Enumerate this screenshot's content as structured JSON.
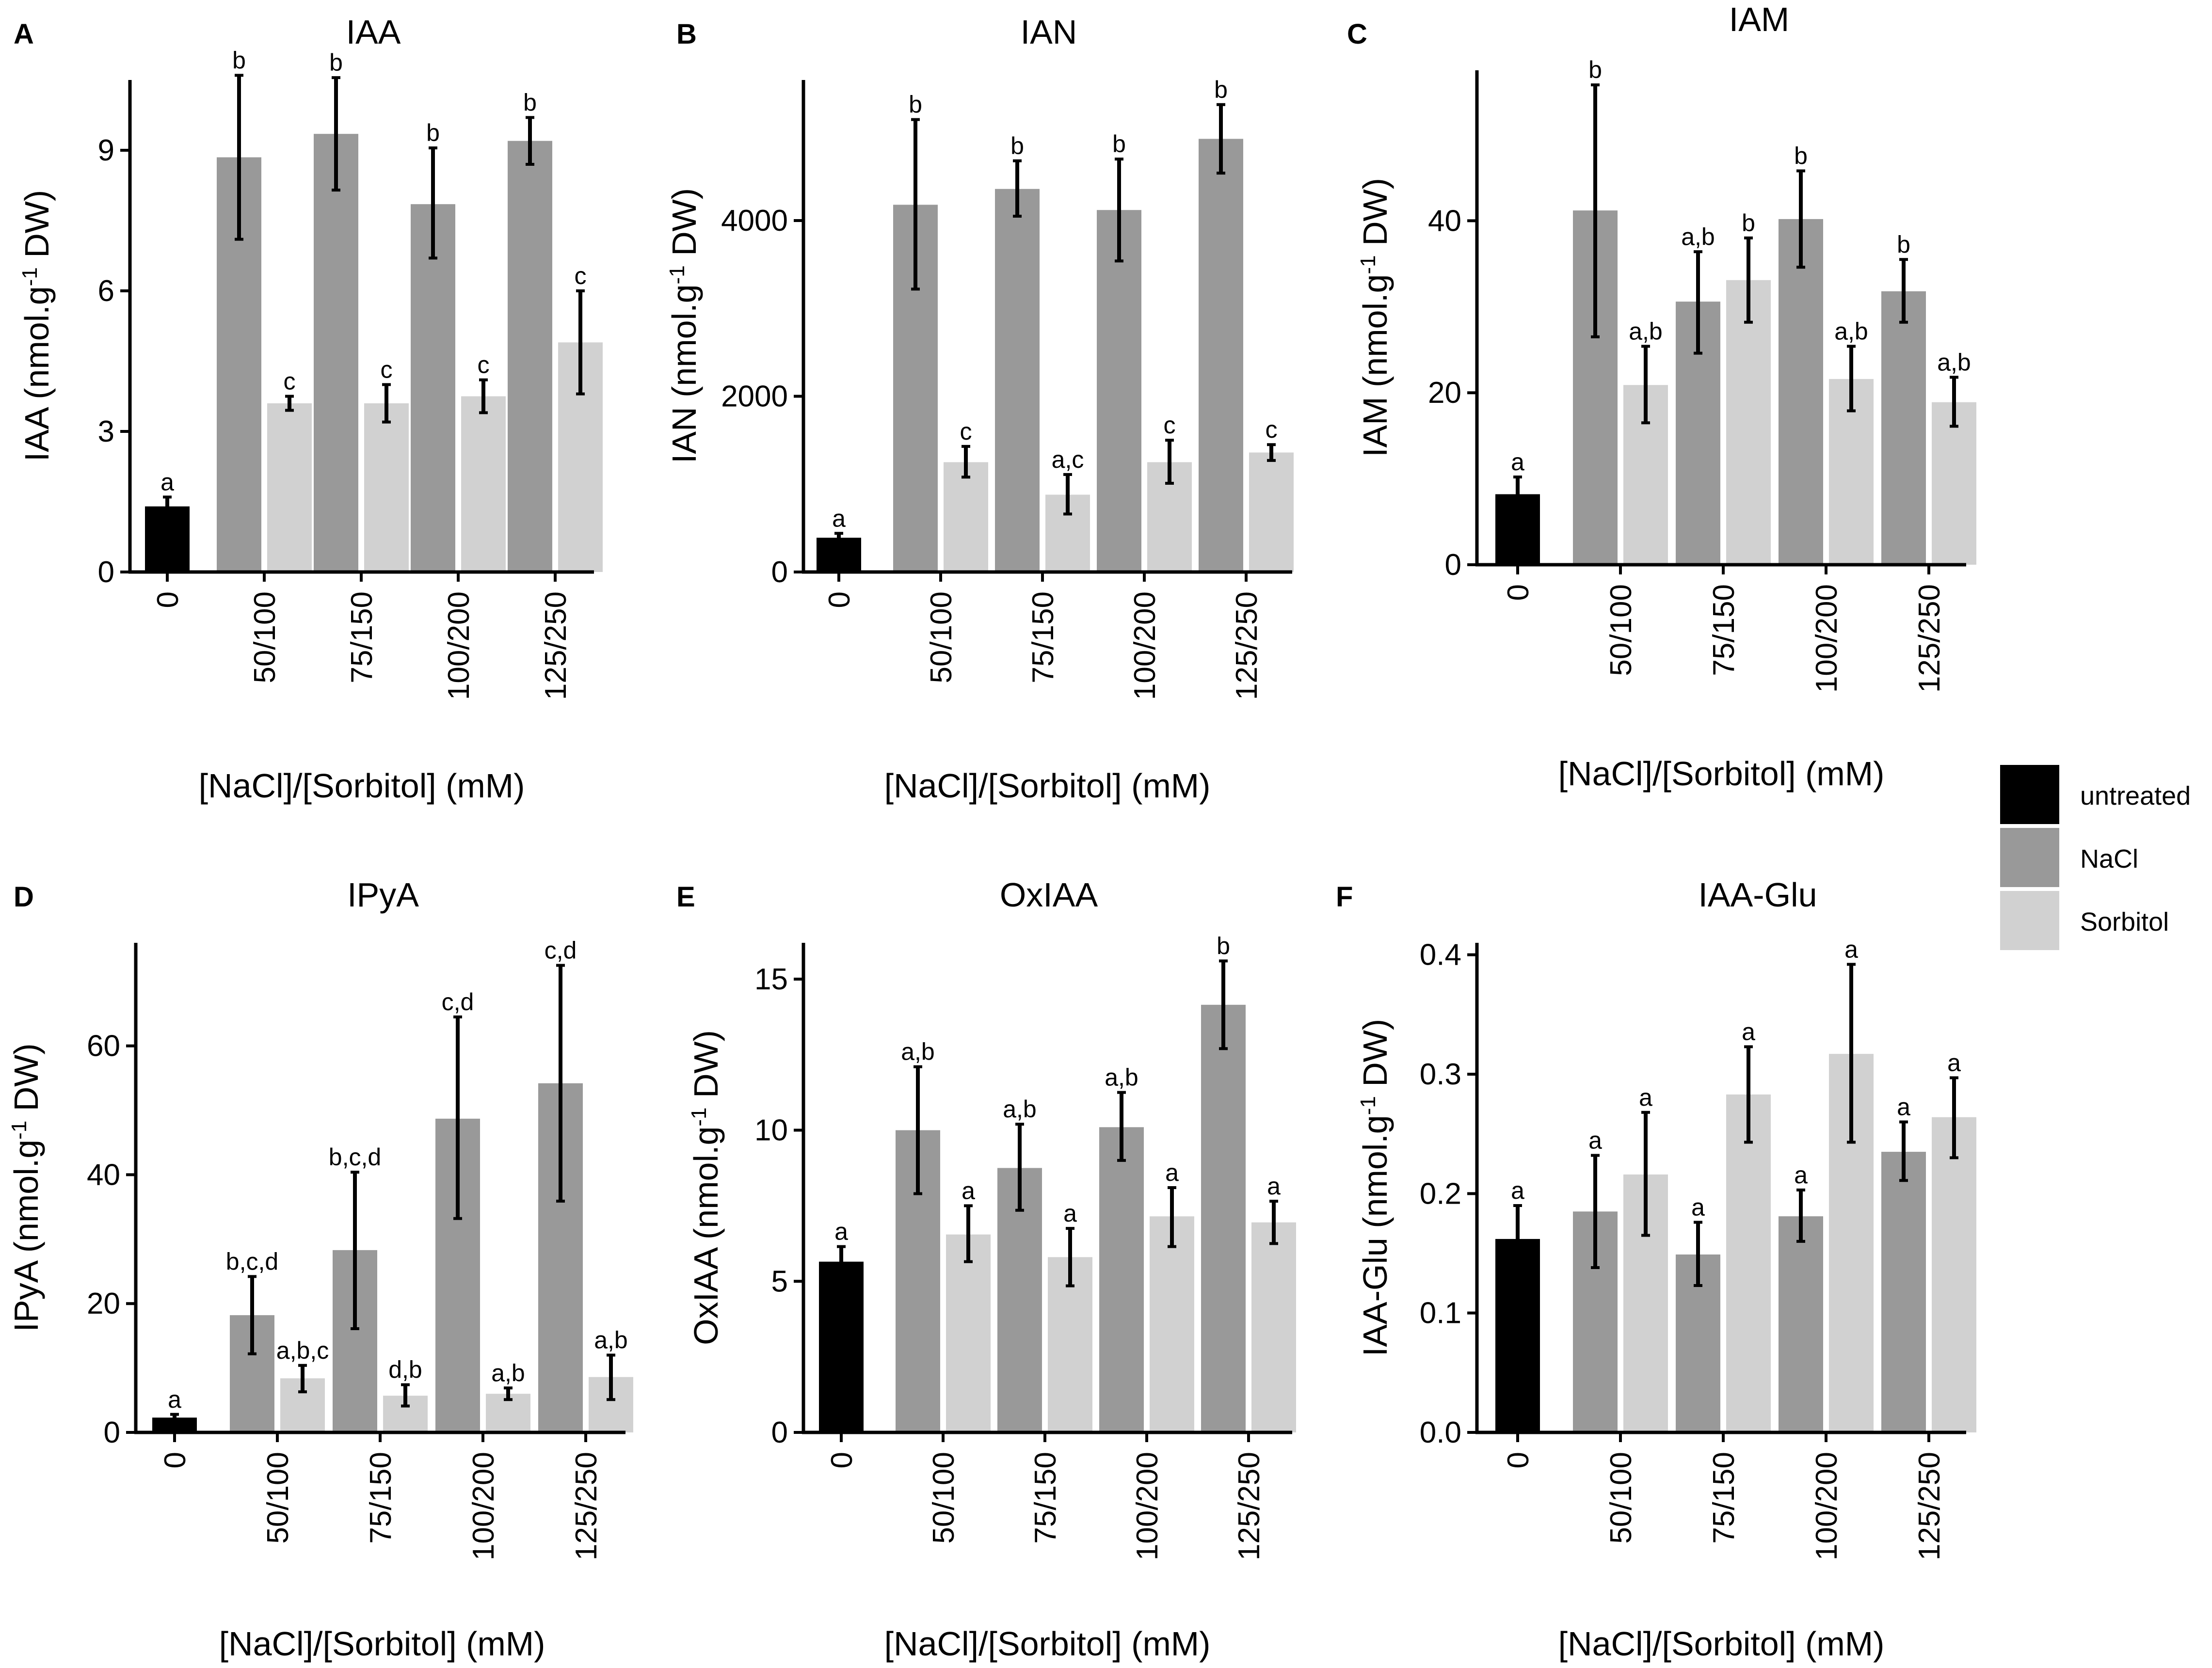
{
  "legend": {
    "entries": [
      {
        "key": "untreated",
        "label": "untreated",
        "color": "#000000"
      },
      {
        "key": "nacl",
        "label": "NaCl",
        "color": "#999999"
      },
      {
        "key": "sorbitol",
        "label": "Sorbitol",
        "color": "#d1d1d1"
      }
    ]
  },
  "chart_data": [
    {
      "panel": "A",
      "type": "bar",
      "title": "IAA",
      "ylabel": "IAA (nmol.g-1 DW)",
      "ylabel_base": "IAA (nmol.g",
      "ylabel_sup": "-1",
      "ylabel_tail": " DW)",
      "xlabel": "[NaCl]/[Sorbitol] (mM)",
      "categories": [
        "0",
        "50/100",
        "75/150",
        "100/200",
        "125/250"
      ],
      "ylim": [
        0,
        10.5
      ],
      "yticks": [
        0,
        3,
        6,
        9
      ],
      "ytick_labels": [
        "0",
        "3",
        "6",
        "9"
      ],
      "bars": [
        {
          "series": "untreated",
          "category": "0",
          "value": 1.4,
          "err_low": 1.2,
          "err_high": 1.6,
          "sig": "a"
        },
        {
          "series": "nacl",
          "category": "50/100",
          "value": 8.85,
          "err_low": 7.1,
          "err_high": 10.6,
          "sig": "b"
        },
        {
          "series": "sorbitol",
          "category": "50/100",
          "value": 3.6,
          "err_low": 3.45,
          "err_high": 3.75,
          "sig": "c"
        },
        {
          "series": "nacl",
          "category": "75/150",
          "value": 9.35,
          "err_low": 8.15,
          "err_high": 10.55,
          "sig": "b"
        },
        {
          "series": "sorbitol",
          "category": "75/150",
          "value": 3.6,
          "err_low": 3.2,
          "err_high": 4.0,
          "sig": "c"
        },
        {
          "series": "nacl",
          "category": "100/200",
          "value": 7.85,
          "err_low": 6.7,
          "err_high": 9.05,
          "sig": "b"
        },
        {
          "series": "sorbitol",
          "category": "100/200",
          "value": 3.75,
          "err_low": 3.4,
          "err_high": 4.1,
          "sig": "c"
        },
        {
          "series": "nacl",
          "category": "125/250",
          "value": 9.2,
          "err_low": 8.7,
          "err_high": 9.7,
          "sig": "b"
        },
        {
          "series": "sorbitol",
          "category": "125/250",
          "value": 4.9,
          "err_low": 3.8,
          "err_high": 6.0,
          "sig": "c"
        }
      ]
    },
    {
      "panel": "B",
      "type": "bar",
      "title": "IAN",
      "ylabel": "IAN (nmol.g-1 DW)",
      "ylabel_base": "IAN (nmol.g",
      "ylabel_sup": "-1",
      "ylabel_tail": " DW)",
      "xlabel": "[NaCl]/[Sorbitol] (mM)",
      "categories": [
        "0",
        "50/100",
        "75/150",
        "100/200",
        "125/250"
      ],
      "ylim": [
        0,
        5600
      ],
      "yticks": [
        0,
        2000,
        4000
      ],
      "ytick_labels": [
        "0",
        "2000",
        "4000"
      ],
      "bars": [
        {
          "series": "untreated",
          "category": "0",
          "value": 390,
          "err_low": 340,
          "err_high": 440,
          "sig": "a"
        },
        {
          "series": "nacl",
          "category": "50/100",
          "value": 4180,
          "err_low": 3220,
          "err_high": 5150,
          "sig": "b"
        },
        {
          "series": "sorbitol",
          "category": "50/100",
          "value": 1250,
          "err_low": 1080,
          "err_high": 1430,
          "sig": "c"
        },
        {
          "series": "nacl",
          "category": "75/150",
          "value": 4360,
          "err_low": 4050,
          "err_high": 4680,
          "sig": "b"
        },
        {
          "series": "sorbitol",
          "category": "75/150",
          "value": 880,
          "err_low": 660,
          "err_high": 1110,
          "sig": "a,c"
        },
        {
          "series": "nacl",
          "category": "100/200",
          "value": 4120,
          "err_low": 3540,
          "err_high": 4700,
          "sig": "b"
        },
        {
          "series": "sorbitol",
          "category": "100/200",
          "value": 1250,
          "err_low": 1010,
          "err_high": 1500,
          "sig": "c"
        },
        {
          "series": "nacl",
          "category": "125/250",
          "value": 4930,
          "err_low": 4540,
          "err_high": 5320,
          "sig": "b"
        },
        {
          "series": "sorbitol",
          "category": "125/250",
          "value": 1360,
          "err_low": 1270,
          "err_high": 1450,
          "sig": "c"
        }
      ]
    },
    {
      "panel": "C",
      "type": "bar",
      "title": "IAM",
      "ylabel": "IAM (nmol.g-1 DW)",
      "ylabel_base": "IAM (nmol.g",
      "ylabel_sup": "-1",
      "ylabel_tail": " DW)",
      "xlabel": "[NaCl]/[Sorbitol] (mM)",
      "categories": [
        "0",
        "50/100",
        "75/150",
        "100/200",
        "125/250"
      ],
      "ylim": [
        0,
        57.5
      ],
      "yticks": [
        0,
        20,
        40
      ],
      "ytick_labels": [
        "0",
        "20",
        "40"
      ],
      "bars": [
        {
          "series": "untreated",
          "category": "0",
          "value": 8.2,
          "err_low": 6.3,
          "err_high": 10.2,
          "sig": "a"
        },
        {
          "series": "nacl",
          "category": "50/100",
          "value": 41.2,
          "err_low": 26.5,
          "err_high": 55.8,
          "sig": "b"
        },
        {
          "series": "sorbitol",
          "category": "50/100",
          "value": 20.9,
          "err_low": 16.5,
          "err_high": 25.4,
          "sig": "a,b"
        },
        {
          "series": "nacl",
          "category": "75/150",
          "value": 30.6,
          "err_low": 24.6,
          "err_high": 36.4,
          "sig": "a,b"
        },
        {
          "series": "sorbitol",
          "category": "75/150",
          "value": 33.1,
          "err_low": 28.2,
          "err_high": 38.0,
          "sig": "b"
        },
        {
          "series": "nacl",
          "category": "100/200",
          "value": 40.2,
          "err_low": 34.6,
          "err_high": 45.8,
          "sig": "b"
        },
        {
          "series": "sorbitol",
          "category": "100/200",
          "value": 21.6,
          "err_low": 17.9,
          "err_high": 25.4,
          "sig": "a,b"
        },
        {
          "series": "nacl",
          "category": "125/250",
          "value": 31.8,
          "err_low": 28.2,
          "err_high": 35.5,
          "sig": "b"
        },
        {
          "series": "sorbitol",
          "category": "125/250",
          "value": 18.9,
          "err_low": 16.1,
          "err_high": 21.8,
          "sig": "a,b"
        }
      ]
    },
    {
      "panel": "D",
      "type": "bar",
      "title": "IPyA",
      "ylabel": "IPyA (nmol.g-1 DW)",
      "ylabel_base": "IPyA (nmol.g",
      "ylabel_sup": "-1",
      "ylabel_tail": " DW)",
      "xlabel": "[NaCl]/[Sorbitol] (mM)",
      "categories": [
        "0",
        "50/100",
        "75/150",
        "100/200",
        "125/250"
      ],
      "ylim": [
        0,
        76
      ],
      "yticks": [
        0,
        20,
        40,
        60
      ],
      "ytick_labels": [
        "0",
        "20",
        "40",
        "60"
      ],
      "bars": [
        {
          "series": "untreated",
          "category": "0",
          "value": 2.3,
          "err_low": 1.8,
          "err_high": 2.8,
          "sig": "a"
        },
        {
          "series": "nacl",
          "category": "50/100",
          "value": 18.2,
          "err_low": 12.2,
          "err_high": 24.2,
          "sig": "b,c,d"
        },
        {
          "series": "sorbitol",
          "category": "50/100",
          "value": 8.4,
          "err_low": 6.3,
          "err_high": 10.4,
          "sig": "a,b,c"
        },
        {
          "series": "nacl",
          "category": "75/150",
          "value": 28.3,
          "err_low": 16.1,
          "err_high": 40.4,
          "sig": "b,c,d"
        },
        {
          "series": "sorbitol",
          "category": "75/150",
          "value": 5.7,
          "err_low": 4.1,
          "err_high": 7.4,
          "sig": "d,b"
        },
        {
          "series": "nacl",
          "category": "100/200",
          "value": 48.7,
          "err_low": 33.2,
          "err_high": 64.5,
          "sig": "c,d"
        },
        {
          "series": "sorbitol",
          "category": "100/200",
          "value": 6.0,
          "err_low": 5.1,
          "err_high": 6.9,
          "sig": "a,b"
        },
        {
          "series": "nacl",
          "category": "125/250",
          "value": 54.2,
          "err_low": 35.9,
          "err_high": 72.5,
          "sig": "c,d"
        },
        {
          "series": "sorbitol",
          "category": "125/250",
          "value": 8.6,
          "err_low": 5.1,
          "err_high": 12.0,
          "sig": "a,b"
        }
      ]
    },
    {
      "panel": "E",
      "type": "bar",
      "title": "OxIAA",
      "ylabel": "OxIAA (nmol.g-1 DW)",
      "ylabel_base": "OxIAA (nmol.g",
      "ylabel_sup": "-1",
      "ylabel_tail": " DW)",
      "xlabel": "[NaCl]/[Sorbitol] (mM)",
      "categories": [
        "0",
        "50/100",
        "75/150",
        "100/200",
        "125/250"
      ],
      "ylim": [
        0,
        16.2
      ],
      "yticks": [
        0,
        5,
        10,
        15
      ],
      "ytick_labels": [
        "0",
        "5",
        "10",
        "15"
      ],
      "bars": [
        {
          "series": "untreated",
          "category": "0",
          "value": 5.65,
          "err_low": 5.15,
          "err_high": 6.15,
          "sig": "a"
        },
        {
          "series": "nacl",
          "category": "50/100",
          "value": 10.0,
          "err_low": 7.9,
          "err_high": 12.1,
          "sig": "a,b"
        },
        {
          "series": "sorbitol",
          "category": "50/100",
          "value": 6.55,
          "err_low": 5.65,
          "err_high": 7.5,
          "sig": "a"
        },
        {
          "series": "nacl",
          "category": "75/150",
          "value": 8.75,
          "err_low": 7.35,
          "err_high": 10.2,
          "sig": "a,b"
        },
        {
          "series": "sorbitol",
          "category": "75/150",
          "value": 5.8,
          "err_low": 4.85,
          "err_high": 6.75,
          "sig": "a"
        },
        {
          "series": "nacl",
          "category": "100/200",
          "value": 10.1,
          "err_low": 9.0,
          "err_high": 11.25,
          "sig": "a,b"
        },
        {
          "series": "sorbitol",
          "category": "100/200",
          "value": 7.15,
          "err_low": 6.15,
          "err_high": 8.1,
          "sig": "a"
        },
        {
          "series": "nacl",
          "category": "125/250",
          "value": 14.15,
          "err_low": 12.7,
          "err_high": 15.6,
          "sig": "b"
        },
        {
          "series": "sorbitol",
          "category": "125/250",
          "value": 6.95,
          "err_low": 6.25,
          "err_high": 7.65,
          "sig": "a"
        }
      ]
    },
    {
      "panel": "F",
      "type": "bar",
      "title": "IAA-Glu",
      "ylabel": "IAA-Glu (nmol.g-1 DW)",
      "ylabel_base": "IAA-Glu (nmol.g",
      "ylabel_sup": "-1",
      "ylabel_tail": " DW)",
      "xlabel": "[NaCl]/[Sorbitol] (mM)",
      "categories": [
        "0",
        "50/100",
        "75/150",
        "100/200",
        "125/250"
      ],
      "ylim": [
        0,
        0.41
      ],
      "yticks": [
        0.0,
        0.1,
        0.2,
        0.3,
        0.4
      ],
      "ytick_labels": [
        "0.0",
        "0.1",
        "0.2",
        "0.3",
        "0.4"
      ],
      "bars": [
        {
          "series": "untreated",
          "category": "0",
          "value": 0.162,
          "err_low": 0.135,
          "err_high": 0.19,
          "sig": "a"
        },
        {
          "series": "nacl",
          "category": "50/100",
          "value": 0.185,
          "err_low": 0.138,
          "err_high": 0.232,
          "sig": "a"
        },
        {
          "series": "sorbitol",
          "category": "50/100",
          "value": 0.216,
          "err_low": 0.165,
          "err_high": 0.268,
          "sig": "a"
        },
        {
          "series": "nacl",
          "category": "75/150",
          "value": 0.149,
          "err_low": 0.123,
          "err_high": 0.176,
          "sig": "a"
        },
        {
          "series": "sorbitol",
          "category": "75/150",
          "value": 0.283,
          "err_low": 0.243,
          "err_high": 0.323,
          "sig": "a"
        },
        {
          "series": "nacl",
          "category": "100/200",
          "value": 0.181,
          "err_low": 0.16,
          "err_high": 0.203,
          "sig": "a"
        },
        {
          "series": "sorbitol",
          "category": "100/200",
          "value": 0.317,
          "err_low": 0.243,
          "err_high": 0.392,
          "sig": "a"
        },
        {
          "series": "nacl",
          "category": "125/250",
          "value": 0.235,
          "err_low": 0.211,
          "err_high": 0.26,
          "sig": "a"
        },
        {
          "series": "sorbitol",
          "category": "125/250",
          "value": 0.264,
          "err_low": 0.23,
          "err_high": 0.297,
          "sig": "a"
        }
      ]
    }
  ]
}
